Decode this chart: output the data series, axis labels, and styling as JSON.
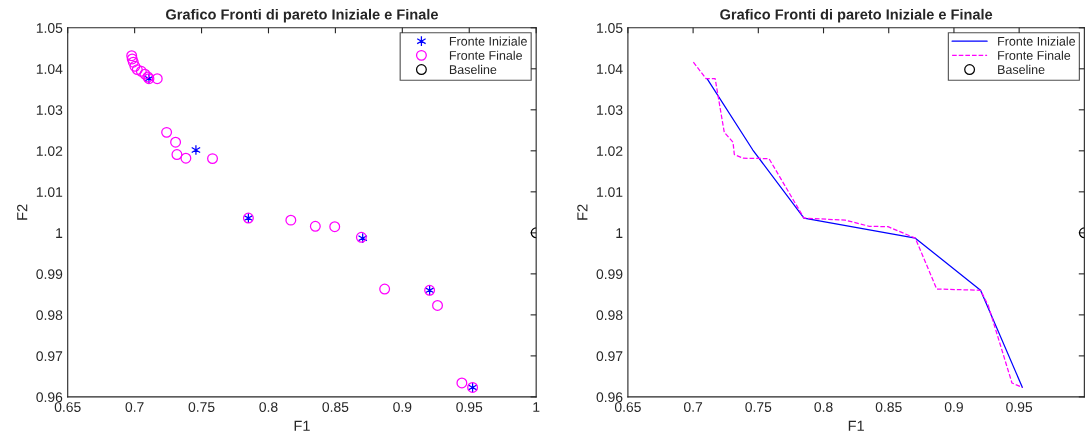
{
  "chart_data": [
    {
      "type": "scatter",
      "title": "Grafico Fronti di pareto Iniziale e Finale",
      "xlabel": "F1",
      "ylabel": "F2",
      "xlim": [
        0.65,
        1
      ],
      "ylim": [
        0.96,
        1.05
      ],
      "xticks": [
        0.65,
        0.7,
        0.75,
        0.8,
        0.85,
        0.9,
        0.95,
        1
      ],
      "yticks": [
        0.96,
        0.97,
        0.98,
        0.99,
        1,
        1.01,
        1.02,
        1.03,
        1.04,
        1.05
      ],
      "legend": "top right",
      "series": [
        {
          "name": "Fronte Iniziale",
          "color": "#0000ff",
          "marker": "cross",
          "x": [
            0.7107,
            0.7458,
            0.785,
            0.8704,
            0.9204,
            0.9525
          ],
          "values": [
            1.0376,
            1.0202,
            1.0036,
            0.9987,
            0.986,
            0.9623
          ]
        },
        {
          "name": "Fronte Finale",
          "color": "#ff00ff",
          "marker": "circle",
          "x": [
            0.6978,
            0.6982,
            0.699,
            0.7002,
            0.702,
            0.705,
            0.7077,
            0.7099,
            0.7107,
            0.7169,
            0.7239,
            0.7306,
            0.7316,
            0.7383,
            0.7582,
            0.785,
            0.8167,
            0.835,
            0.8495,
            0.8694,
            0.8868,
            0.9204,
            0.9263,
            0.9445,
            0.9525
          ],
          "values": [
            1.0432,
            1.0424,
            1.0416,
            1.0406,
            1.0398,
            1.0394,
            1.0387,
            1.038,
            1.0376,
            1.0376,
            1.0245,
            1.0221,
            1.0191,
            1.0182,
            1.0181,
            1.0036,
            1.0031,
            1.0016,
            1.0015,
            0.9989,
            0.9863,
            0.986,
            0.9823,
            0.9634,
            0.9623
          ]
        },
        {
          "name": "Baseline",
          "color": "#000000",
          "marker": "circle",
          "x": [
            1
          ],
          "values": [
            1
          ]
        }
      ]
    },
    {
      "type": "line",
      "title": "Grafico Fronti di pareto Iniziale e Finale",
      "xlabel": "F1",
      "ylabel": "F2",
      "xlim": [
        0.65,
        1
      ],
      "ylim": [
        0.96,
        1.05
      ],
      "xticks": [
        0.65,
        0.7,
        0.75,
        0.8,
        0.85,
        0.9,
        0.95
      ],
      "yticks": [
        0.96,
        0.97,
        0.98,
        0.99,
        1,
        1.01,
        1.02,
        1.03,
        1.04,
        1.05
      ],
      "legend": "top right",
      "series": [
        {
          "name": "Fronte Iniziale",
          "color": "#0000ff",
          "line_style": "solid",
          "x": [
            0.7107,
            0.7458,
            0.785,
            0.8704,
            0.9204,
            0.9525
          ],
          "values": [
            1.0376,
            1.0202,
            1.0036,
            0.9987,
            0.986,
            0.9623
          ]
        },
        {
          "name": "Fronte Finale",
          "color": "#ff00ff",
          "line_style": "dashed",
          "x": [
            0.7002,
            0.7099,
            0.7169,
            0.7239,
            0.7306,
            0.7316,
            0.7383,
            0.7582,
            0.785,
            0.8167,
            0.835,
            0.8495,
            0.8704,
            0.8868,
            0.9204,
            0.9263,
            0.9445,
            0.9525
          ],
          "values": [
            1.0416,
            1.0376,
            1.0376,
            1.0245,
            1.0221,
            1.0191,
            1.0182,
            1.0181,
            1.0036,
            1.0031,
            1.0016,
            1.0015,
            0.9987,
            0.9863,
            0.986,
            0.9823,
            0.9634,
            0.9623
          ]
        },
        {
          "name": "Baseline",
          "type": "scatter",
          "color": "#000000",
          "marker": "circle",
          "x": [
            1
          ],
          "values": [
            1
          ]
        }
      ]
    }
  ]
}
